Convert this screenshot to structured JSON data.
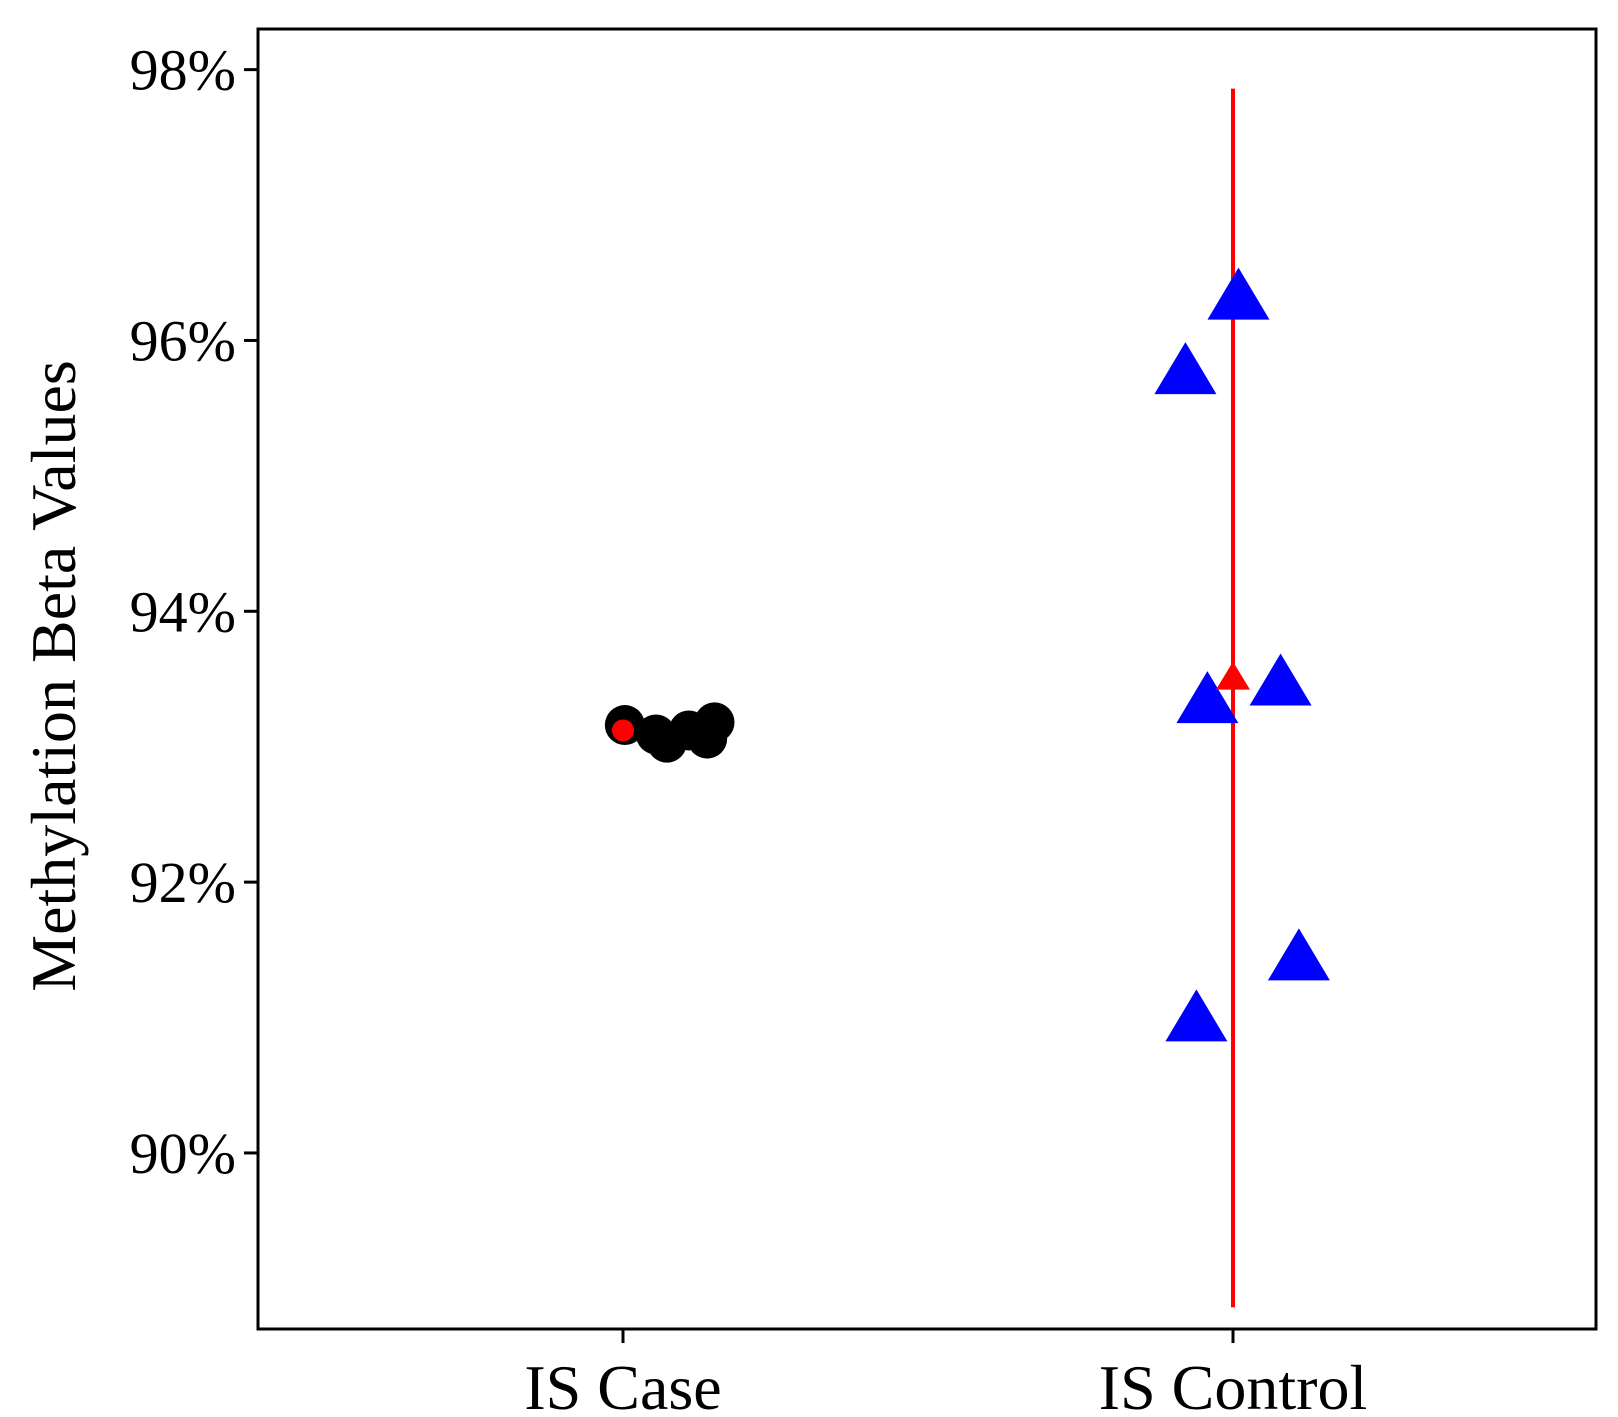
{
  "chart_data": {
    "type": "scatter",
    "ylabel": "Methylation Beta Values",
    "xlabel": "",
    "categories": [
      "IS Case",
      "IS Control"
    ],
    "y_ticks": [
      0.9,
      0.92,
      0.94,
      0.96,
      0.98
    ],
    "y_tick_labels": [
      "90%",
      "92%",
      "94%",
      "96%",
      "98%"
    ],
    "ylim": [
      0.887,
      0.983
    ],
    "grid": false,
    "legend": "none",
    "series": [
      {
        "category": "IS Case",
        "marker": "circle",
        "color": "#000000",
        "points": [
          {
            "jitter": 0.005,
            "y": 0.9316
          },
          {
            "jitter": 0.09,
            "y": 0.9309
          },
          {
            "jitter": 0.12,
            "y": 0.9303
          },
          {
            "jitter": 0.18,
            "y": 0.9312
          },
          {
            "jitter": 0.23,
            "y": 0.9306
          },
          {
            "jitter": 0.25,
            "y": 0.9318
          }
        ],
        "summary": {
          "mean": 0.9312,
          "lower": 0.9309,
          "upper": 0.9315,
          "color": "#ff0000"
        }
      },
      {
        "category": "IS Control",
        "marker": "triangle",
        "color": "#0000ff",
        "points": [
          {
            "jitter": -0.13,
            "y": 0.9575
          },
          {
            "jitter": 0.015,
            "y": 0.963
          },
          {
            "jitter": -0.07,
            "y": 0.9332
          },
          {
            "jitter": 0.13,
            "y": 0.9345
          },
          {
            "jitter": -0.1,
            "y": 0.9097
          },
          {
            "jitter": 0.18,
            "y": 0.9142
          }
        ],
        "summary": {
          "mean": 0.935,
          "lower": 0.8886,
          "upper": 0.9786,
          "color": "#ff0000"
        }
      }
    ]
  }
}
